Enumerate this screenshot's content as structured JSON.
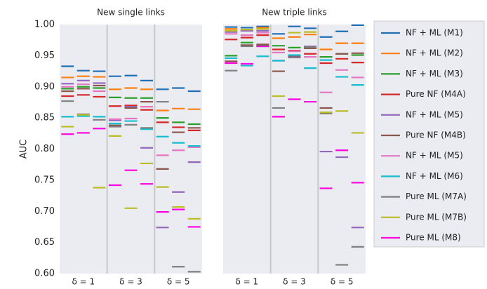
{
  "chart_data": {
    "type": "strip",
    "ylabel": "AUC",
    "ylim": [
      0.6,
      1.0
    ],
    "yticks": [
      {
        "value": 0.6,
        "label": "0.60"
      },
      {
        "value": 0.65,
        "label": "0.65"
      },
      {
        "value": 0.7,
        "label": "0.70"
      },
      {
        "value": 0.75,
        "label": "0.75"
      },
      {
        "value": 0.8,
        "label": "0.80"
      },
      {
        "value": 0.85,
        "label": "0.85"
      },
      {
        "value": 0.9,
        "label": "0.90"
      },
      {
        "value": 0.95,
        "label": "0.95"
      },
      {
        "value": 1.0,
        "label": "1.00"
      }
    ],
    "categories": [
      null,
      "δ = 1",
      null,
      null,
      "δ = 3",
      null,
      null,
      "δ = 5",
      null
    ],
    "series": [
      {
        "name": "NF + ML (M1)",
        "color": "#1f6fb4"
      },
      {
        "name": "NF + ML (M2)",
        "color": "#ff7f0e"
      },
      {
        "name": "NF + ML (M3)",
        "color": "#2ca02c"
      },
      {
        "name": "Pure NF (M4A)",
        "color": "#d62728"
      },
      {
        "name": "NF + ML (M5)",
        "color": "#9467bd"
      },
      {
        "name": "Pure NF (M4B)",
        "color": "#8c564b"
      },
      {
        "name": "NF + ML (M5)",
        "color": "#e377c2"
      },
      {
        "name": "NF + ML (M6)",
        "color": "#17becf"
      },
      {
        "name": "Pure ML (M7A)",
        "color": "#7f7f7f"
      },
      {
        "name": "Pure ML (M7B)",
        "color": "#bcbd22"
      },
      {
        "name": "Pure ML (M8)",
        "color": "#ff00e0"
      }
    ],
    "panels": [
      {
        "title": "New single links",
        "values": [
          [
            0.933,
            0.926,
            0.925,
            0.917,
            0.918,
            0.91,
            0.896,
            0.898,
            0.893
          ],
          [
            0.915,
            0.917,
            0.916,
            0.896,
            0.898,
            0.896,
            0.862,
            0.865,
            0.864
          ],
          [
            0.897,
            0.9,
            0.898,
            0.883,
            0.882,
            0.882,
            0.85,
            0.843,
            0.84
          ],
          [
            0.885,
            0.887,
            0.884,
            0.869,
            0.87,
            0.863,
            0.843,
            0.835,
            0.83
          ],
          [
            0.905,
            0.91,
            0.906,
            0.846,
            0.868,
            0.802,
            0.674,
            0.731,
            0.779
          ],
          [
            0.893,
            0.897,
            0.902,
            0.838,
            0.866,
            0.876,
            0.768,
            0.827,
            0.834
          ],
          [
            0.9,
            0.904,
            0.893,
            0.848,
            0.849,
            0.868,
            0.79,
            0.798,
            0.803
          ],
          [
            0.852,
            0.853,
            0.852,
            0.841,
            0.845,
            0.832,
            0.82,
            0.81,
            0.805
          ],
          [
            0.877,
            0.856,
            0.847,
            0.836,
            0.839,
            0.834,
            0.876,
            0.611,
            0.603
          ],
          [
            0.836,
            0.855,
            0.738,
            0.821,
            0.705,
            0.777,
            0.739,
            0.707,
            0.688
          ],
          [
            0.824,
            0.826,
            0.833,
            0.742,
            0.766,
            0.744,
            0.699,
            0.703,
            0.675
          ]
        ]
      },
      {
        "title": "New triple links",
        "values": [
          [
            0.996,
            0.995,
            0.997,
            0.985,
            0.997,
            0.994,
            0.98,
            0.989,
            0.999
          ],
          [
            0.993,
            0.991,
            0.995,
            0.978,
            0.98,
            0.984,
            0.96,
            0.97,
            0.97
          ],
          [
            0.95,
            0.971,
            0.967,
            0.966,
            0.963,
            0.962,
            0.948,
            0.953,
            0.951
          ],
          [
            0.976,
            0.979,
            0.983,
            0.96,
            0.958,
            0.953,
            0.938,
            0.945,
            0.939
          ],
          [
            0.988,
            0.99,
            0.99,
            0.942,
            0.948,
            0.965,
            0.796,
            0.787,
            0.674
          ],
          [
            0.941,
            0.967,
            0.968,
            0.925,
            0.95,
            0.962,
            0.866,
            0.953,
            0.954
          ],
          [
            0.985,
            0.983,
            0.987,
            0.955,
            0.957,
            0.948,
            0.891,
            0.927,
            0.915
          ],
          [
            0.946,
            0.934,
            0.949,
            0.942,
            0.951,
            0.93,
            0.943,
            0.916,
            0.903
          ],
          [
            0.926,
            0.965,
            0.965,
            0.866,
            0.947,
            0.964,
            0.857,
            0.614,
            0.643
          ],
          [
            0.99,
            0.992,
            0.993,
            0.885,
            0.987,
            0.988,
            0.859,
            0.861,
            0.826
          ],
          [
            0.938,
            0.937,
            0.965,
            0.852,
            0.88,
            0.876,
            0.737,
            0.798,
            0.746
          ]
        ]
      }
    ]
  }
}
